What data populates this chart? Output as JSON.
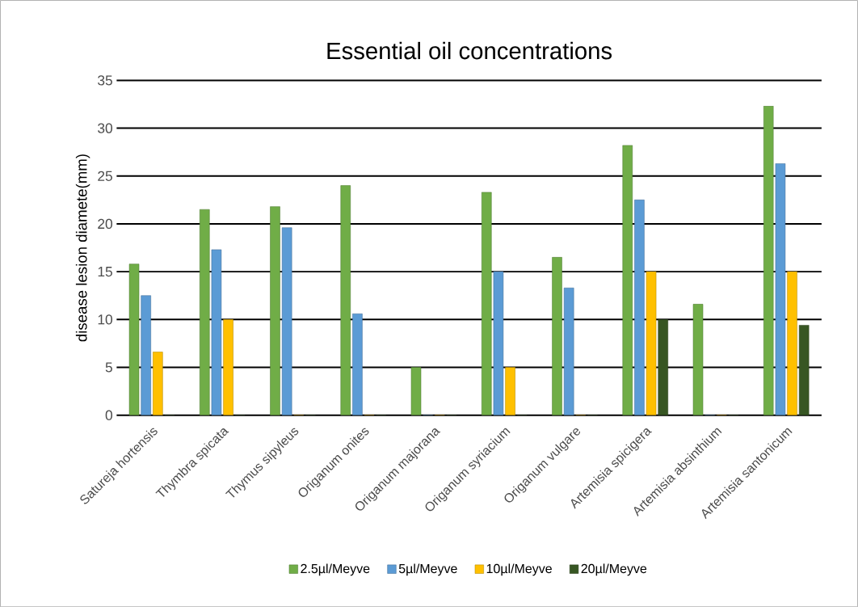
{
  "chart_data": {
    "type": "bar",
    "title": "Essential oil concentrations",
    "ylabel": "disease lesion diamete(mm)",
    "categories": [
      "Satureja hortensis",
      "Thymbra spicata",
      "Thymus sipyleus",
      "Origanum onites",
      "Origanum majorana",
      "Origanum syriacium",
      "Origanum vulgare",
      "Artemisia spicigera",
      "Artemisia absinthium",
      "Artemisia santonicum"
    ],
    "series": [
      {
        "name": "2.5µl/Meyve",
        "color": "#70ad47",
        "values": [
          15.8,
          21.5,
          21.8,
          24,
          5,
          23.3,
          16.5,
          28.2,
          11.6,
          32.3
        ]
      },
      {
        "name": "5µl/Meyve",
        "color": "#5b9bd5",
        "values": [
          12.5,
          17.3,
          19.6,
          10.6,
          0,
          15,
          13.3,
          22.5,
          0,
          26.3
        ]
      },
      {
        "name": "10µl/Meyve",
        "color": "#ffc000",
        "values": [
          6.6,
          10,
          0,
          0,
          0,
          5,
          0,
          15,
          0,
          15
        ]
      },
      {
        "name": "20µl/Meyve",
        "color": "#375623",
        "values": [
          0,
          0,
          0,
          0,
          0,
          0,
          0,
          10,
          0,
          9.4
        ]
      }
    ],
    "ylim": [
      0,
      35
    ],
    "yticks": [
      0,
      5,
      10,
      15,
      20,
      25,
      30,
      35
    ],
    "grid": "y",
    "legend": "bottom"
  }
}
